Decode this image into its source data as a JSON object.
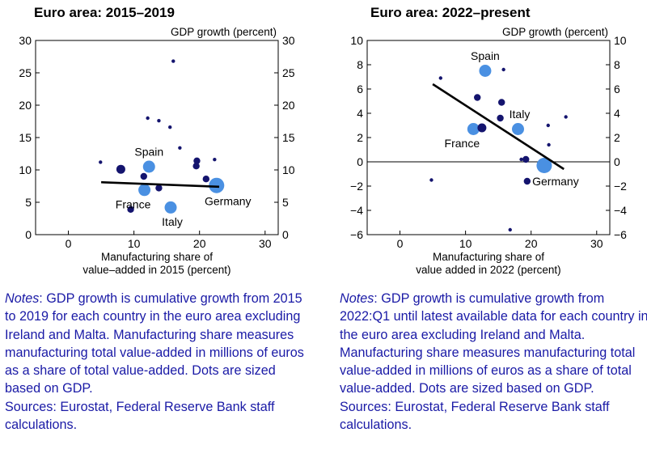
{
  "chart_data": [
    {
      "type": "scatter",
      "title": "Euro area: 2015–2019",
      "y_axis_title": "GDP growth (percent)",
      "xlabel": [
        "Manufacturing share of",
        "value–added in 2015 (percent)"
      ],
      "xlim": [
        -5,
        32
      ],
      "ylim": [
        0,
        30
      ],
      "xticks": [
        0,
        10,
        20,
        30
      ],
      "yticks": [
        0,
        5,
        10,
        15,
        20,
        25,
        30
      ],
      "trend_line": {
        "from": [
          5,
          8.1
        ],
        "to": [
          23,
          7.4
        ],
        "color": "#000000"
      },
      "points": [
        {
          "x": 4.9,
          "y": 11.2,
          "size": "tiny",
          "color": "#14146e"
        },
        {
          "x": 8.0,
          "y": 10.1,
          "size": "medium",
          "color": "#14146e"
        },
        {
          "x": 9.5,
          "y": 3.9,
          "size": "small",
          "color": "#14146e"
        },
        {
          "x": 11.5,
          "y": 9.0,
          "size": "small",
          "color": "#14146e"
        },
        {
          "x": 12.1,
          "y": 18.0,
          "size": "tiny",
          "color": "#14146e"
        },
        {
          "x": 12.3,
          "y": 10.5,
          "size": "large",
          "color": "#4a90e2",
          "label": "Spain",
          "label_pos": "above"
        },
        {
          "x": 11.6,
          "y": 6.9,
          "size": "large",
          "color": "#4a90e2",
          "label": "France",
          "label_pos": "below"
        },
        {
          "x": 13.8,
          "y": 17.6,
          "size": "tiny",
          "color": "#14146e"
        },
        {
          "x": 13.8,
          "y": 7.2,
          "size": "small",
          "color": "#14146e"
        },
        {
          "x": 15.5,
          "y": 16.6,
          "size": "tiny",
          "color": "#14146e"
        },
        {
          "x": 15.6,
          "y": 4.2,
          "size": "large",
          "color": "#4a90e2",
          "label": "Italy",
          "label_pos": "below"
        },
        {
          "x": 16.0,
          "y": 26.8,
          "size": "tiny",
          "color": "#14146e"
        },
        {
          "x": 17.0,
          "y": 13.4,
          "size": "tiny",
          "color": "#14146e"
        },
        {
          "x": 19.6,
          "y": 11.4,
          "size": "small",
          "color": "#14146e"
        },
        {
          "x": 19.5,
          "y": 10.6,
          "size": "small",
          "color": "#14146e"
        },
        {
          "x": 21.0,
          "y": 8.6,
          "size": "small",
          "color": "#14146e"
        },
        {
          "x": 22.3,
          "y": 11.6,
          "size": "tiny",
          "color": "#14146e"
        },
        {
          "x": 22.6,
          "y": 7.6,
          "size": "xlarge",
          "color": "#4a90e2",
          "label": "Germany",
          "label_pos": "below"
        }
      ]
    },
    {
      "type": "scatter",
      "title": "Euro area: 2022–present",
      "y_axis_title": "GDP growth (percent)",
      "xlabel": [
        "Manufacturing share of",
        "value added in 2022 (percent)"
      ],
      "xlim": [
        -5,
        32
      ],
      "ylim": [
        -6,
        10
      ],
      "xticks": [
        0,
        10,
        20,
        30
      ],
      "yticks": [
        -6,
        -4,
        -2,
        0,
        2,
        4,
        6,
        8,
        10
      ],
      "zero_line": true,
      "trend_line": {
        "from": [
          5,
          6.4
        ],
        "to": [
          25,
          -0.6
        ],
        "color": "#000000"
      },
      "points": [
        {
          "x": 4.8,
          "y": -1.5,
          "size": "tiny",
          "color": "#14146e"
        },
        {
          "x": 6.2,
          "y": 6.9,
          "size": "tiny",
          "color": "#14146e"
        },
        {
          "x": 11.2,
          "y": 2.7,
          "size": "large",
          "color": "#4a90e2",
          "label": "France",
          "label_pos": "below"
        },
        {
          "x": 11.8,
          "y": 5.3,
          "size": "small",
          "color": "#14146e"
        },
        {
          "x": 12.5,
          "y": 2.8,
          "size": "medium",
          "color": "#14146e"
        },
        {
          "x": 13.0,
          "y": 7.5,
          "size": "large",
          "color": "#4a90e2",
          "label": "Spain",
          "label_pos": "above"
        },
        {
          "x": 15.3,
          "y": 3.6,
          "size": "small",
          "color": "#14146e"
        },
        {
          "x": 15.5,
          "y": 4.9,
          "size": "small",
          "color": "#14146e"
        },
        {
          "x": 15.8,
          "y": 7.6,
          "size": "tiny",
          "color": "#14146e"
        },
        {
          "x": 16.8,
          "y": -5.6,
          "size": "tiny",
          "color": "#14146e"
        },
        {
          "x": 18.0,
          "y": 2.7,
          "size": "large",
          "color": "#4a90e2",
          "label": "Italy",
          "label_pos": "above"
        },
        {
          "x": 18.5,
          "y": 0.2,
          "size": "tiny",
          "color": "#14146e"
        },
        {
          "x": 19.2,
          "y": 0.2,
          "size": "small",
          "color": "#14146e"
        },
        {
          "x": 19.4,
          "y": -1.6,
          "size": "small",
          "color": "#14146e"
        },
        {
          "x": 22.0,
          "y": -0.3,
          "size": "xlarge",
          "color": "#4a90e2",
          "label": "Germany",
          "label_pos": "below"
        },
        {
          "x": 22.6,
          "y": 3.0,
          "size": "tiny",
          "color": "#14146e"
        },
        {
          "x": 22.7,
          "y": 1.4,
          "size": "tiny",
          "color": "#14146e"
        },
        {
          "x": 25.3,
          "y": 3.7,
          "size": "tiny",
          "color": "#14146e"
        }
      ]
    }
  ],
  "notes_left": {
    "notes_word": "Notes",
    "notes_text": ": GDP growth is cumulative growth from 2015 to 2019 for each country in the euro area excluding Ireland and Malta. Manufacturing share measures manufacturing total value-added in millions of euros as a share of total value-added. Dots are sized based on GDP.",
    "sources_text": "Sources: Eurostat, Federal Reserve Bank staff calculations."
  },
  "notes_right": {
    "notes_word": "Notes",
    "notes_text": ": GDP growth is cumulative growth from 2022:Q1 until latest available data for each country in the euro area excluding Ireland and Malta. Manufacturing share measures manufacturing total value-added in millions of euros as a share of total value-added. Dots are sized based on GDP.",
    "sources_text": "Sources: Eurostat, Federal Reserve Bank staff calculations."
  }
}
